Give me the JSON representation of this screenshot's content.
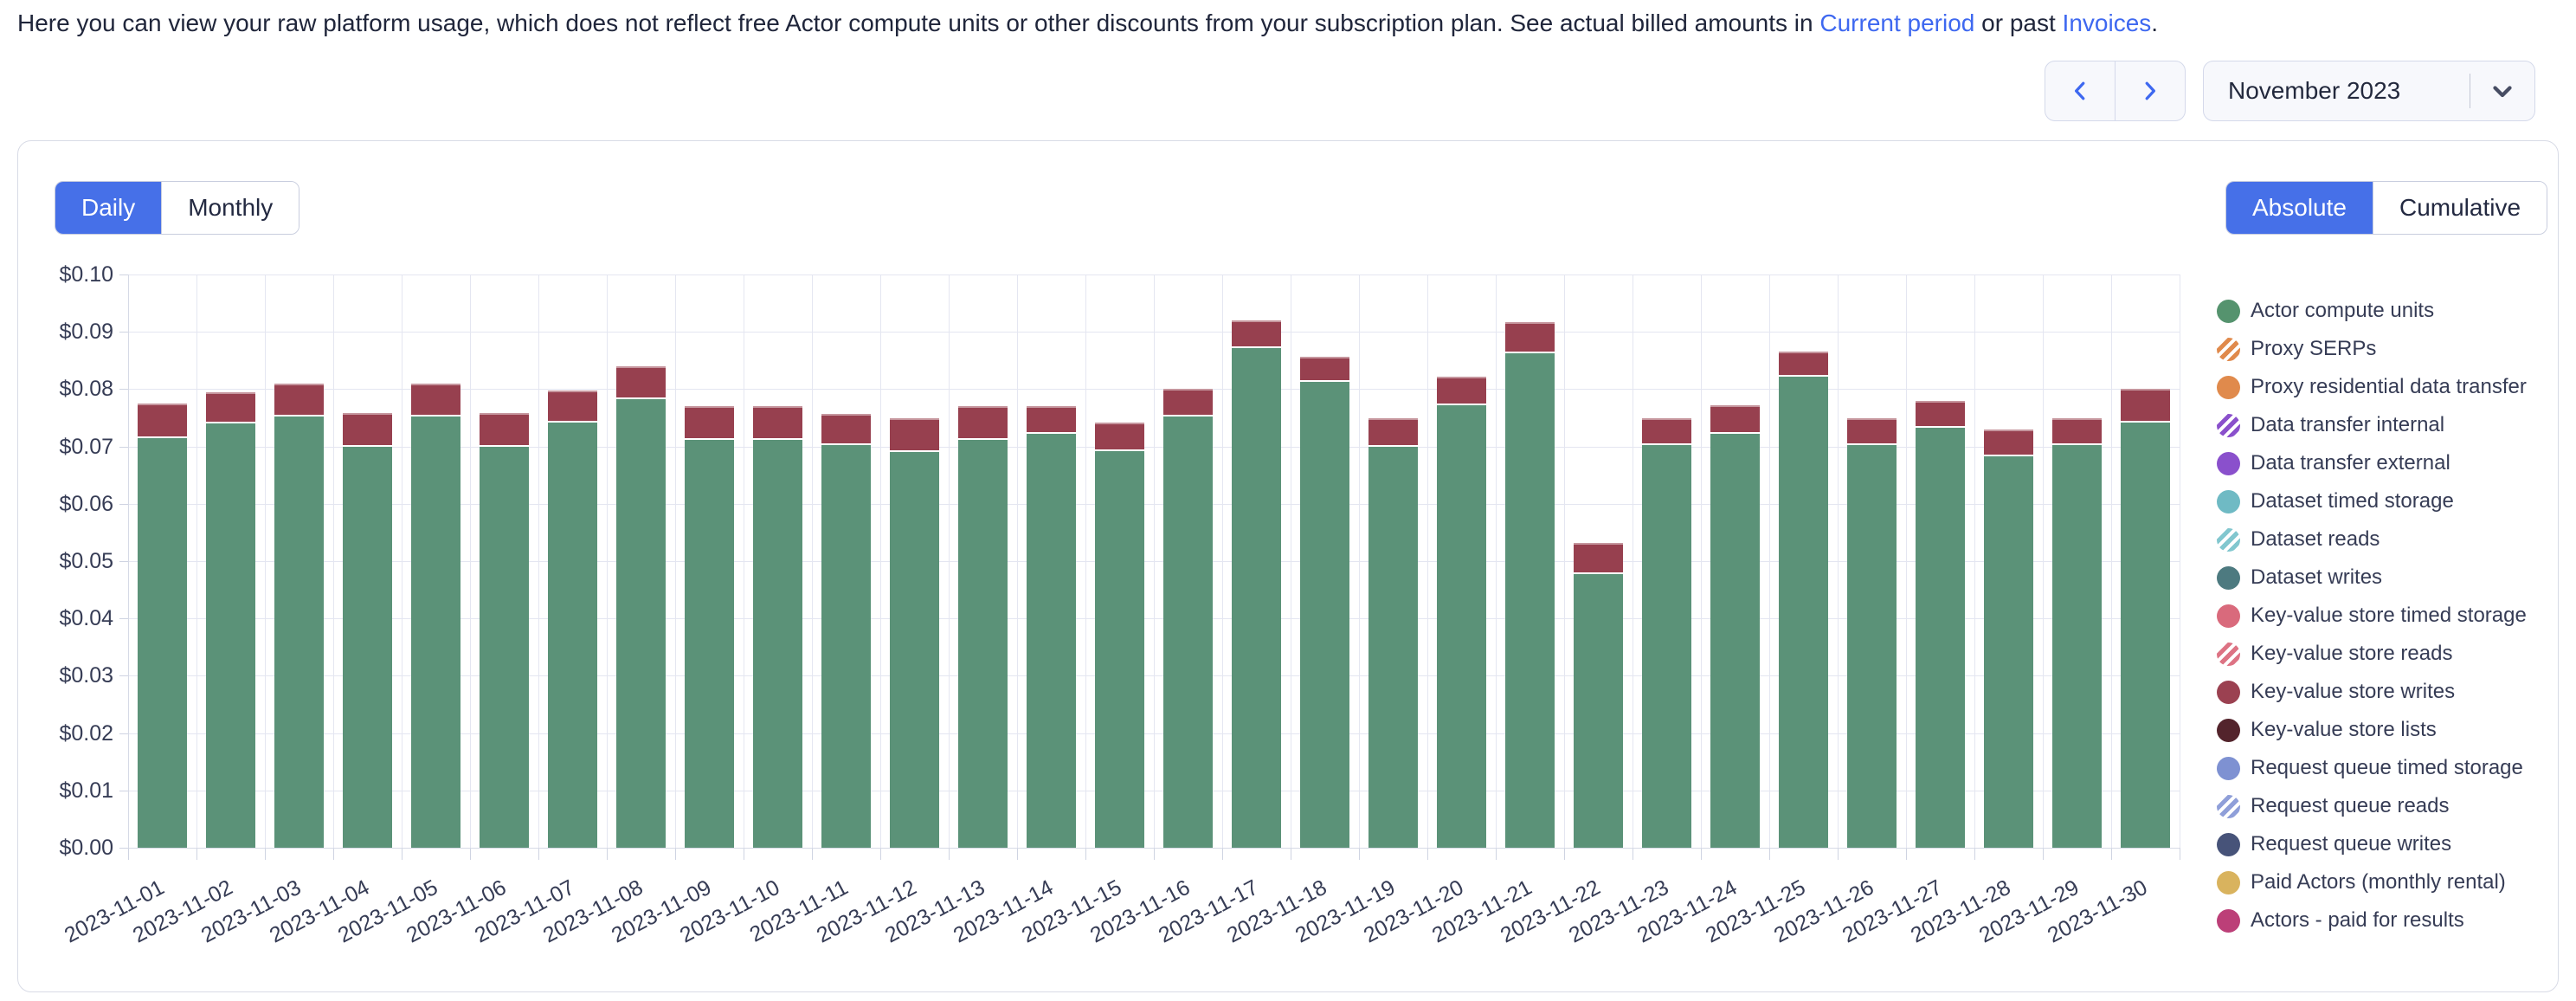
{
  "intro": {
    "text_prefix": "Here you can view your raw platform usage, which does not reflect free Actor compute units or other discounts from your subscription plan. See actual billed amounts in ",
    "link_current_period": "Current period",
    "text_mid": " or past ",
    "link_invoices": "Invoices",
    "text_suffix": "."
  },
  "controls": {
    "prev_icon": "chevron-left",
    "next_icon": "chevron-right",
    "period_label": "November 2023",
    "period_caret_icon": "chevron-down"
  },
  "toggles": {
    "granularity": {
      "options": [
        "Daily",
        "Monthly"
      ],
      "selected": "Daily"
    },
    "mode": {
      "options": [
        "Absolute",
        "Cumulative"
      ],
      "selected": "Absolute"
    }
  },
  "colors": {
    "accent_blue": "#4670e8",
    "link_blue": "#3e68f0",
    "grid": "#e4e6f1",
    "bar_green": "#5b9278",
    "bar_red": "#97404f"
  },
  "chart_data": {
    "type": "bar",
    "stacked": true,
    "title": "",
    "xlabel": "",
    "ylabel": "",
    "grid": true,
    "legend_position": "right",
    "ylim": [
      0,
      0.1
    ],
    "y_tick_step": 0.01,
    "y_tick_labels": [
      "$0.00",
      "$0.01",
      "$0.02",
      "$0.03",
      "$0.04",
      "$0.05",
      "$0.06",
      "$0.07",
      "$0.08",
      "$0.09",
      "$0.10"
    ],
    "categories": [
      "2023-11-01",
      "2023-11-02",
      "2023-11-03",
      "2023-11-04",
      "2023-11-05",
      "2023-11-06",
      "2023-11-07",
      "2023-11-08",
      "2023-11-09",
      "2023-11-10",
      "2023-11-11",
      "2023-11-12",
      "2023-11-13",
      "2023-11-14",
      "2023-11-15",
      "2023-11-16",
      "2023-11-17",
      "2023-11-18",
      "2023-11-19",
      "2023-11-20",
      "2023-11-21",
      "2023-11-22",
      "2023-11-23",
      "2023-11-24",
      "2023-11-25",
      "2023-11-26",
      "2023-11-27",
      "2023-11-28",
      "2023-11-29",
      "2023-11-30"
    ],
    "series": [
      {
        "name": "Actor compute units",
        "color": "#5b9278",
        "values": [
          0.0715,
          0.074,
          0.0752,
          0.07,
          0.0752,
          0.07,
          0.0742,
          0.0783,
          0.0712,
          0.0712,
          0.0702,
          0.069,
          0.0712,
          0.0722,
          0.0692,
          0.0752,
          0.0872,
          0.0812,
          0.07,
          0.0772,
          0.0862,
          0.0477,
          0.0702,
          0.0722,
          0.0822,
          0.0702,
          0.0732,
          0.0683,
          0.0702,
          0.0742
        ]
      },
      {
        "name": "Key-value store writes",
        "color": "#97404f",
        "values": [
          0.006,
          0.0055,
          0.0058,
          0.0058,
          0.0058,
          0.0058,
          0.0055,
          0.0057,
          0.0058,
          0.0058,
          0.0055,
          0.006,
          0.0058,
          0.0048,
          0.005,
          0.0048,
          0.0048,
          0.0045,
          0.005,
          0.005,
          0.0055,
          0.0055,
          0.0048,
          0.005,
          0.0043,
          0.0048,
          0.0048,
          0.0047,
          0.0048,
          0.0058
        ]
      }
    ]
  },
  "legend": {
    "items": [
      {
        "label": "Actor compute units",
        "color": "#55936e",
        "striped": false
      },
      {
        "label": "Proxy SERPs",
        "color": "#e08a4c",
        "striped": true
      },
      {
        "label": "Proxy residential data transfer",
        "color": "#e08a4c",
        "striped": false
      },
      {
        "label": "Data transfer internal",
        "color": "#8a50cc",
        "striped": true
      },
      {
        "label": "Data transfer external",
        "color": "#8a50cc",
        "striped": false
      },
      {
        "label": "Dataset timed storage",
        "color": "#6fbac4",
        "striped": false
      },
      {
        "label": "Dataset reads",
        "color": "#82c7cf",
        "striped": true
      },
      {
        "label": "Dataset writes",
        "color": "#4d7a80",
        "striped": false
      },
      {
        "label": "Key-value store timed storage",
        "color": "#d96a7c",
        "striped": false
      },
      {
        "label": "Key-value store reads",
        "color": "#dd7384",
        "striped": true
      },
      {
        "label": "Key-value store writes",
        "color": "#9b4151",
        "striped": false
      },
      {
        "label": "Key-value store lists",
        "color": "#53242c",
        "striped": false
      },
      {
        "label": "Request queue timed storage",
        "color": "#7e91d2",
        "striped": false
      },
      {
        "label": "Request queue reads",
        "color": "#8f9fd9",
        "striped": true
      },
      {
        "label": "Request queue writes",
        "color": "#475379",
        "striped": false
      },
      {
        "label": "Paid Actors (monthly rental)",
        "color": "#d9b35e",
        "striped": false
      },
      {
        "label": "Actors - paid for results",
        "color": "#bc3f78",
        "striped": false
      }
    ]
  }
}
